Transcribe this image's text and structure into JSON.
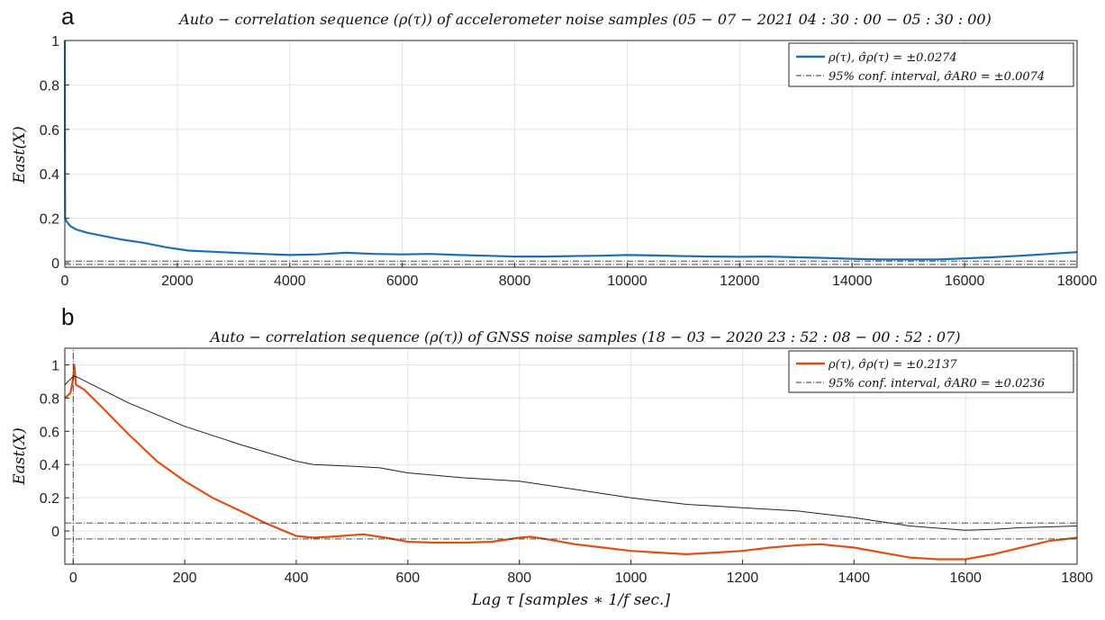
{
  "figure": {
    "xlabel": "Lag τ [samples ∗ 1/f sec.]"
  },
  "chart_data": [
    {
      "panel": "a",
      "type": "line",
      "title": "Auto − correlation sequence (ρ(τ)) of accelerometer noise samples (05 − 07 − 2021  04 : 30 : 00 − 05 : 30 : 00)",
      "ylabel": "East(X)",
      "xlabel": "",
      "xlim": [
        0,
        18000
      ],
      "ylim": [
        -0.02,
        1
      ],
      "xticks": [
        0,
        2000,
        4000,
        6000,
        8000,
        10000,
        12000,
        14000,
        16000,
        18000
      ],
      "yticks": [
        0,
        0.2,
        0.4,
        0.6,
        0.8,
        1
      ],
      "grid": true,
      "legend_position": "top-right",
      "legend": [
        "ρ(τ), σ̂ρ(τ) = ±0.0274",
        "95% conf. interval, σ̂AR0 = ±0.0074"
      ],
      "series": [
        {
          "name": "ρ(τ), σ̂ρ(τ) = ±0.0274",
          "color": "#1f6fb0",
          "style": "solid",
          "x": [
            0,
            1,
            5,
            20,
            50,
            100,
            200,
            400,
            700,
            1000,
            1400,
            1800,
            2200,
            2600,
            3000,
            3500,
            4000,
            4500,
            5000,
            5500,
            6000,
            6500,
            7000,
            7500,
            8000,
            8500,
            9000,
            9500,
            10000,
            10500,
            11000,
            11500,
            12000,
            12500,
            13000,
            13500,
            14000,
            14500,
            15000,
            15500,
            16000,
            16500,
            17000,
            17500,
            18000
          ],
          "y": [
            1.0,
            0.55,
            0.2,
            0.19,
            0.18,
            0.165,
            0.15,
            0.135,
            0.12,
            0.105,
            0.09,
            0.07,
            0.055,
            0.05,
            0.045,
            0.04,
            0.035,
            0.038,
            0.045,
            0.04,
            0.038,
            0.04,
            0.035,
            0.032,
            0.028,
            0.028,
            0.03,
            0.032,
            0.035,
            0.033,
            0.03,
            0.028,
            0.027,
            0.028,
            0.025,
            0.022,
            0.018,
            0.015,
            0.015,
            0.015,
            0.02,
            0.025,
            0.032,
            0.04,
            0.048
          ]
        },
        {
          "name": "95% conf. interval, σ̂AR0 = ±0.0074",
          "color": "#333333",
          "style": "dashdot",
          "x": [
            0,
            18000
          ],
          "y": [
            0.0074,
            0.0074
          ]
        },
        {
          "name": "95% conf. interval, σ̂AR0 = ±0.0074",
          "color": "#333333",
          "style": "dashdot",
          "x": [
            0,
            18000
          ],
          "y": [
            -0.0074,
            -0.0074
          ]
        }
      ]
    },
    {
      "panel": "b",
      "type": "line",
      "title": "Auto − correlation sequence (ρ(τ)) of GNSS noise samples (18 − 03 − 2020  23 : 52 : 08 − 00 : 52 : 07)",
      "ylabel": "East(X)",
      "xlabel": "Lag τ [samples ∗ 1/f sec.]",
      "xlim": [
        -15,
        1800
      ],
      "ylim": [
        -0.2,
        1.1
      ],
      "xticks": [
        0,
        200,
        400,
        600,
        800,
        1000,
        1200,
        1400,
        1600,
        1800
      ],
      "yticks": [
        0,
        0.2,
        0.4,
        0.6,
        0.8,
        1
      ],
      "grid": true,
      "legend_position": "top-right",
      "legend": [
        "ρ(τ), σ̂ρ(τ) = ±0.2137",
        "95% conf. interval, σ̂AR0 = ±0.0236"
      ],
      "series": [
        {
          "name": "ρ(τ), σ̂ρ(τ) = ±0.2137",
          "color": "#d95319",
          "style": "solid",
          "x": [
            -15,
            -5,
            0,
            2,
            5,
            20,
            50,
            100,
            150,
            200,
            250,
            300,
            350,
            400,
            430,
            460,
            500,
            520,
            560,
            600,
            650,
            700,
            750,
            800,
            820,
            850,
            900,
            950,
            1000,
            1050,
            1100,
            1150,
            1200,
            1250,
            1300,
            1340,
            1400,
            1450,
            1500,
            1550,
            1600,
            1650,
            1700,
            1750,
            1800
          ],
          "y": [
            0.8,
            0.83,
            0.92,
            1.0,
            0.88,
            0.85,
            0.75,
            0.58,
            0.42,
            0.3,
            0.2,
            0.12,
            0.04,
            -0.03,
            -0.04,
            -0.035,
            -0.025,
            -0.02,
            -0.04,
            -0.065,
            -0.07,
            -0.07,
            -0.065,
            -0.04,
            -0.035,
            -0.05,
            -0.08,
            -0.1,
            -0.12,
            -0.13,
            -0.14,
            -0.13,
            -0.12,
            -0.1,
            -0.085,
            -0.08,
            -0.1,
            -0.13,
            -0.16,
            -0.17,
            -0.17,
            -0.14,
            -0.1,
            -0.06,
            -0.04
          ]
        },
        {
          "name": "",
          "color": "#222222",
          "style": "solid-thin",
          "x": [
            -15,
            0,
            5,
            100,
            200,
            300,
            400,
            430,
            500,
            550,
            600,
            700,
            800,
            900,
            1000,
            1100,
            1200,
            1300,
            1400,
            1500,
            1600,
            1650,
            1700,
            1750,
            1800
          ],
          "y": [
            0.88,
            0.93,
            0.93,
            0.77,
            0.63,
            0.52,
            0.42,
            0.4,
            0.39,
            0.38,
            0.35,
            0.32,
            0.3,
            0.25,
            0.2,
            0.16,
            0.14,
            0.12,
            0.08,
            0.03,
            0.005,
            0.01,
            0.02,
            0.025,
            0.03
          ]
        },
        {
          "name": "95% conf. interval, σ̂AR0 = ±0.0236",
          "color": "#333333",
          "style": "dashdot",
          "x": [
            -15,
            1800
          ],
          "y": [
            0.048,
            0.048
          ]
        },
        {
          "name": "95% conf. interval, σ̂AR0 = ±0.0236",
          "color": "#333333",
          "style": "dashdot",
          "x": [
            -15,
            1800
          ],
          "y": [
            -0.048,
            -0.048
          ]
        },
        {
          "name": "",
          "color": "#333333",
          "style": "dashdot-vertical",
          "x": [
            0,
            0
          ],
          "y": [
            -0.2,
            1.1
          ]
        }
      ]
    }
  ]
}
